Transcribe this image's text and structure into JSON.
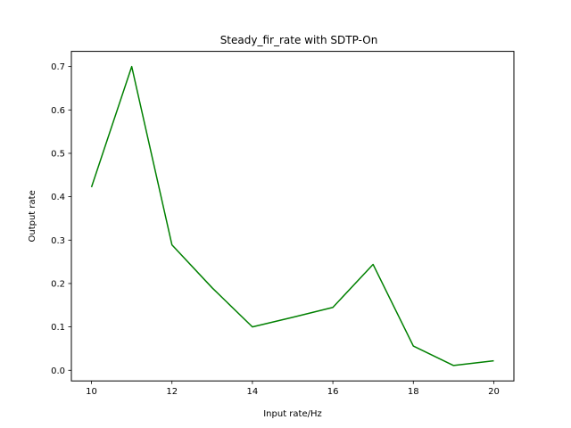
{
  "chart_data": {
    "type": "line",
    "title": "Steady_fir_rate with SDTP-On",
    "xlabel": "Input rate/Hz",
    "ylabel": "Output rate",
    "x": [
      10,
      11,
      12,
      13,
      14,
      15,
      16,
      17,
      18,
      19,
      20
    ],
    "series": [
      {
        "color": "#008000",
        "values": [
          0.422,
          0.7,
          0.289,
          0.19,
          0.1,
          0.122,
          0.145,
          0.244,
          0.056,
          0.011,
          0.022
        ]
      }
    ],
    "xlim": [
      9.5,
      20.5
    ],
    "ylim": [
      -0.0245,
      0.735
    ],
    "xticks": [
      10,
      12,
      14,
      16,
      18,
      20
    ],
    "xtick_labels": [
      "10",
      "12",
      "14",
      "16",
      "18",
      "20"
    ],
    "yticks": [
      0.0,
      0.1,
      0.2,
      0.3,
      0.4,
      0.5,
      0.6,
      0.7
    ],
    "ytick_labels": [
      "0.0",
      "0.1",
      "0.2",
      "0.3",
      "0.4",
      "0.5",
      "0.6",
      "0.7"
    ],
    "grid": false,
    "legend": "none"
  }
}
